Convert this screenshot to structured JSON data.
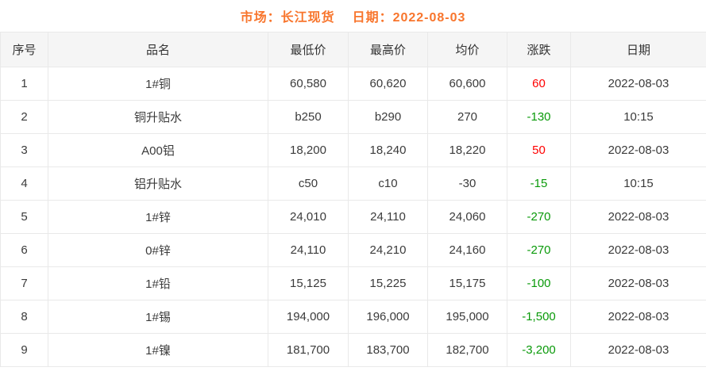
{
  "header": {
    "market_label": "市场：长江现货",
    "date_label": "日期：2022-08-03"
  },
  "colors": {
    "accent_orange": "#f8752c",
    "up_red": "#ff0000",
    "down_green": "#0a9a0a",
    "header_bg": "#f5f5f5",
    "border": "#e9e9e9",
    "text": "#3b3b3b"
  },
  "table": {
    "columns": [
      "序号",
      "品名",
      "最低价",
      "最高价",
      "均价",
      "涨跌",
      "日期"
    ],
    "rows": [
      {
        "no": "1",
        "name": "1#铜",
        "low": "60,580",
        "high": "60,620",
        "avg": "60,600",
        "change": "60",
        "date": "2022-08-03"
      },
      {
        "no": "2",
        "name": "铜升贴水",
        "low": "b250",
        "high": "b290",
        "avg": "270",
        "change": "-130",
        "date": "10:15"
      },
      {
        "no": "3",
        "name": "A00铝",
        "low": "18,200",
        "high": "18,240",
        "avg": "18,220",
        "change": "50",
        "date": "2022-08-03"
      },
      {
        "no": "4",
        "name": "铝升贴水",
        "low": "c50",
        "high": "c10",
        "avg": "-30",
        "change": "-15",
        "date": "10:15"
      },
      {
        "no": "5",
        "name": "1#锌",
        "low": "24,010",
        "high": "24,110",
        "avg": "24,060",
        "change": "-270",
        "date": "2022-08-03"
      },
      {
        "no": "6",
        "name": "0#锌",
        "low": "24,110",
        "high": "24,210",
        "avg": "24,160",
        "change": "-270",
        "date": "2022-08-03"
      },
      {
        "no": "7",
        "name": "1#铅",
        "low": "15,125",
        "high": "15,225",
        "avg": "15,175",
        "change": "-100",
        "date": "2022-08-03"
      },
      {
        "no": "8",
        "name": "1#锡",
        "low": "194,000",
        "high": "196,000",
        "avg": "195,000",
        "change": "-1,500",
        "date": "2022-08-03"
      },
      {
        "no": "9",
        "name": "1#镍",
        "low": "181,700",
        "high": "183,700",
        "avg": "182,700",
        "change": "-3,200",
        "date": "2022-08-03"
      }
    ]
  }
}
